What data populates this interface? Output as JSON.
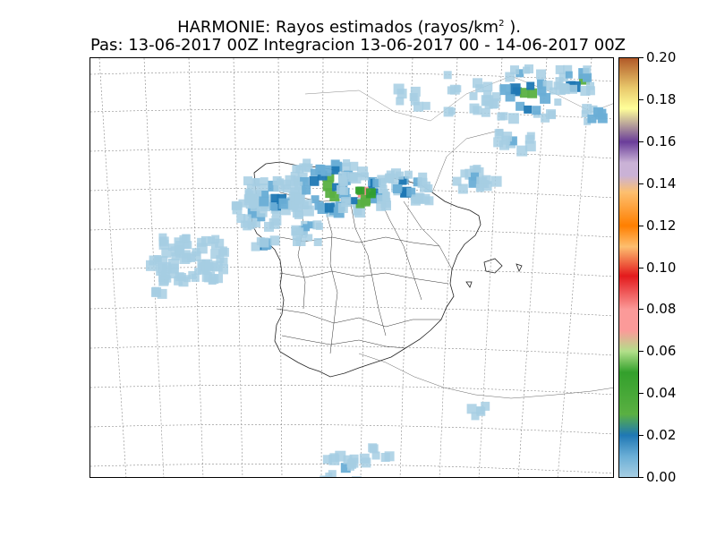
{
  "title": {
    "line1_prefix": "HARMONIE: Rayos estimados  (rayos/km",
    "line1_sup": "2",
    "line1_suffix": " ).",
    "line2": "Pas: 13-06-2017 00Z Integracion 13-06-2017 00 - 14-06-2017 00Z"
  },
  "colorbar": {
    "labels": [
      "0.20",
      "0.18",
      "0.16",
      "0.14",
      "0.12",
      "0.10",
      "0.08",
      "0.06",
      "0.04",
      "0.02",
      "0.00"
    ],
    "range": [
      0.0,
      0.2
    ]
  },
  "map": {
    "region": "Iberian Peninsula",
    "colors": {
      "low": "#a6cee3",
      "mid": "#1f78b4",
      "green": "#33a02c",
      "red": "#e31a1c"
    }
  }
}
